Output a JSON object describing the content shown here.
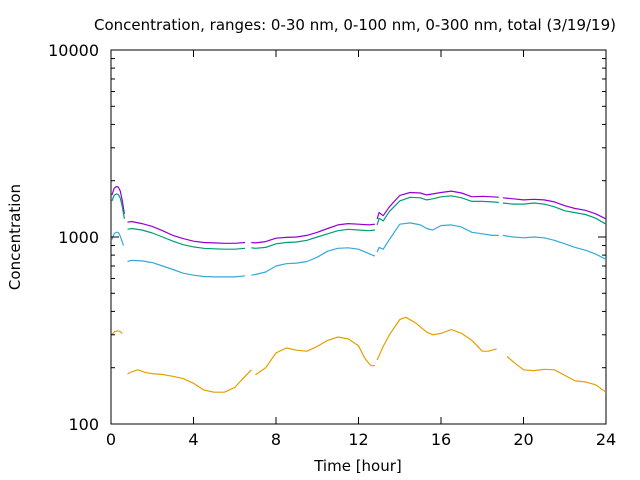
{
  "chart_data": {
    "type": "line",
    "title": "Concentration, ranges: 0-30 nm, 0-100 nm, 0-300 nm, total (3/19/19)",
    "xlabel": "Time [hour]",
    "ylabel": "Concentration",
    "xlim": [
      0,
      24
    ],
    "ylim": [
      100,
      10000
    ],
    "yscale": "log",
    "grid": false,
    "x_ticks": [
      0,
      4,
      8,
      12,
      16,
      20,
      24
    ],
    "x_tick_labels": [
      "0",
      "4",
      "8",
      "12",
      "16",
      "20",
      "24"
    ],
    "y_ticks": [
      100,
      1000,
      10000
    ],
    "y_tick_labels": [
      "100",
      "1000",
      "10000"
    ],
    "y_minor_ticks": [
      200,
      300,
      400,
      500,
      600,
      700,
      800,
      900,
      2000,
      3000,
      4000,
      5000,
      6000,
      7000,
      8000,
      9000
    ],
    "series": [
      {
        "color": "#9400d3",
        "segments": [
          [
            [
              0.05,
              1680
            ],
            [
              0.15,
              1820
            ],
            [
              0.25,
              1860
            ],
            [
              0.35,
              1850
            ],
            [
              0.45,
              1760
            ],
            [
              0.55,
              1560
            ],
            [
              0.65,
              1330
            ]
          ],
          [
            [
              0.8,
              1200
            ],
            [
              1.0,
              1210
            ],
            [
              1.5,
              1180
            ],
            [
              2.0,
              1140
            ],
            [
              2.5,
              1080
            ],
            [
              3.0,
              1020
            ],
            [
              3.5,
              980
            ],
            [
              4.0,
              950
            ],
            [
              4.5,
              935
            ],
            [
              5.0,
              930
            ],
            [
              5.5,
              925
            ],
            [
              6.0,
              925
            ],
            [
              6.5,
              935
            ]
          ],
          [
            [
              6.8,
              935
            ],
            [
              7.0,
              930
            ],
            [
              7.5,
              945
            ],
            [
              8.0,
              985
            ],
            [
              8.5,
              995
            ],
            [
              9.0,
              1000
            ],
            [
              9.5,
              1020
            ],
            [
              10.0,
              1060
            ],
            [
              10.5,
              1110
            ],
            [
              11.0,
              1160
            ],
            [
              11.5,
              1180
            ],
            [
              12.0,
              1170
            ],
            [
              12.5,
              1160
            ],
            [
              12.8,
              1170
            ]
          ],
          [
            [
              12.9,
              1250
            ],
            [
              13.0,
              1350
            ],
            [
              13.2,
              1300
            ],
            [
              13.5,
              1450
            ],
            [
              14.0,
              1670
            ],
            [
              14.5,
              1730
            ],
            [
              15.0,
              1720
            ],
            [
              15.3,
              1680
            ],
            [
              15.6,
              1700
            ],
            [
              16.0,
              1730
            ],
            [
              16.5,
              1760
            ],
            [
              17.0,
              1720
            ],
            [
              17.5,
              1640
            ],
            [
              18.0,
              1650
            ],
            [
              18.5,
              1640
            ],
            [
              18.8,
              1630
            ]
          ],
          [
            [
              19.0,
              1620
            ],
            [
              19.5,
              1600
            ],
            [
              20.0,
              1580
            ],
            [
              20.5,
              1590
            ],
            [
              21.0,
              1580
            ],
            [
              21.5,
              1540
            ],
            [
              22.0,
              1470
            ],
            [
              22.5,
              1420
            ],
            [
              23.0,
              1390
            ],
            [
              23.5,
              1330
            ],
            [
              24.0,
              1250
            ]
          ]
        ]
      },
      {
        "color": "#009e73",
        "segments": [
          [
            [
              0.05,
              1560
            ],
            [
              0.15,
              1670
            ],
            [
              0.25,
              1700
            ],
            [
              0.35,
              1690
            ],
            [
              0.45,
              1610
            ],
            [
              0.55,
              1450
            ],
            [
              0.65,
              1250
            ]
          ],
          [
            [
              0.8,
              1100
            ],
            [
              1.0,
              1110
            ],
            [
              1.5,
              1090
            ],
            [
              2.0,
              1050
            ],
            [
              2.5,
              1000
            ],
            [
              3.0,
              950
            ],
            [
              3.5,
              910
            ],
            [
              4.0,
              885
            ],
            [
              4.5,
              870
            ],
            [
              5.0,
              865
            ],
            [
              5.5,
              860
            ],
            [
              6.0,
              860
            ],
            [
              6.5,
              870
            ]
          ],
          [
            [
              6.8,
              875
            ],
            [
              7.0,
              870
            ],
            [
              7.5,
              880
            ],
            [
              8.0,
              920
            ],
            [
              8.5,
              935
            ],
            [
              9.0,
              940
            ],
            [
              9.5,
              960
            ],
            [
              10.0,
              1000
            ],
            [
              10.5,
              1040
            ],
            [
              11.0,
              1080
            ],
            [
              11.5,
              1100
            ],
            [
              12.0,
              1090
            ],
            [
              12.5,
              1080
            ],
            [
              12.8,
              1090
            ]
          ],
          [
            [
              12.9,
              1160
            ],
            [
              13.0,
              1260
            ],
            [
              13.2,
              1220
            ],
            [
              13.5,
              1370
            ],
            [
              14.0,
              1560
            ],
            [
              14.5,
              1630
            ],
            [
              15.0,
              1620
            ],
            [
              15.3,
              1580
            ],
            [
              15.6,
              1600
            ],
            [
              16.0,
              1640
            ],
            [
              16.5,
              1660
            ],
            [
              17.0,
              1620
            ],
            [
              17.5,
              1550
            ],
            [
              18.0,
              1550
            ],
            [
              18.5,
              1540
            ],
            [
              18.8,
              1530
            ]
          ],
          [
            [
              19.0,
              1520
            ],
            [
              19.5,
              1500
            ],
            [
              20.0,
              1500
            ],
            [
              20.5,
              1520
            ],
            [
              21.0,
              1500
            ],
            [
              21.5,
              1450
            ],
            [
              22.0,
              1380
            ],
            [
              22.5,
              1350
            ],
            [
              23.0,
              1320
            ],
            [
              23.5,
              1260
            ],
            [
              24.0,
              1170
            ]
          ]
        ]
      },
      {
        "color": "#35a9d9",
        "segments": [
          [
            [
              0.05,
              970
            ],
            [
              0.15,
              1040
            ],
            [
              0.25,
              1060
            ],
            [
              0.35,
              1060
            ],
            [
              0.45,
              1010
            ],
            [
              0.55,
              940
            ],
            [
              0.6,
              900
            ]
          ],
          [
            [
              0.8,
              740
            ],
            [
              1.0,
              750
            ],
            [
              1.5,
              745
            ],
            [
              2.0,
              730
            ],
            [
              2.5,
              700
            ],
            [
              3.0,
              670
            ],
            [
              3.5,
              640
            ],
            [
              4.0,
              625
            ],
            [
              4.5,
              615
            ],
            [
              5.0,
              612
            ],
            [
              5.5,
              612
            ],
            [
              6.0,
              612
            ],
            [
              6.5,
              620
            ]
          ],
          [
            [
              6.8,
              625
            ],
            [
              7.0,
              630
            ],
            [
              7.5,
              650
            ],
            [
              8.0,
              700
            ],
            [
              8.5,
              720
            ],
            [
              9.0,
              725
            ],
            [
              9.5,
              740
            ],
            [
              10.0,
              780
            ],
            [
              10.5,
              840
            ],
            [
              11.0,
              870
            ],
            [
              11.5,
              875
            ],
            [
              12.0,
              860
            ],
            [
              12.5,
              815
            ],
            [
              12.8,
              790
            ]
          ],
          [
            [
              12.9,
              830
            ],
            [
              13.0,
              880
            ],
            [
              13.2,
              860
            ],
            [
              13.5,
              970
            ],
            [
              14.0,
              1170
            ],
            [
              14.5,
              1190
            ],
            [
              15.0,
              1160
            ],
            [
              15.3,
              1110
            ],
            [
              15.6,
              1090
            ],
            [
              16.0,
              1150
            ],
            [
              16.5,
              1160
            ],
            [
              17.0,
              1130
            ],
            [
              17.5,
              1060
            ],
            [
              18.0,
              1040
            ],
            [
              18.5,
              1020
            ],
            [
              18.8,
              1020
            ]
          ],
          [
            [
              19.0,
              1020
            ],
            [
              19.5,
              1000
            ],
            [
              20.0,
              990
            ],
            [
              20.5,
              1000
            ],
            [
              21.0,
              990
            ],
            [
              21.5,
              960
            ],
            [
              22.0,
              920
            ],
            [
              22.5,
              880
            ],
            [
              23.0,
              850
            ],
            [
              23.5,
              810
            ],
            [
              24.0,
              760
            ]
          ]
        ]
      },
      {
        "color": "#e69f00",
        "segments": [
          [
            [
              0.05,
              300
            ],
            [
              0.15,
              310
            ],
            [
              0.3,
              315
            ],
            [
              0.45,
              312
            ],
            [
              0.55,
              305
            ]
          ],
          [
            [
              0.8,
              185
            ],
            [
              1.0,
              190
            ],
            [
              1.3,
              195
            ],
            [
              1.7,
              188
            ],
            [
              2.0,
              186
            ],
            [
              2.5,
              184
            ],
            [
              3.0,
              180
            ],
            [
              3.5,
              175
            ],
            [
              4.0,
              165
            ],
            [
              4.5,
              152
            ],
            [
              5.0,
              148
            ],
            [
              5.5,
              148
            ],
            [
              6.0,
              157
            ],
            [
              6.5,
              180
            ],
            [
              6.8,
              195
            ]
          ],
          [
            [
              7.0,
              183
            ],
            [
              7.5,
              200
            ],
            [
              8.0,
              240
            ],
            [
              8.5,
              255
            ],
            [
              9.0,
              248
            ],
            [
              9.5,
              245
            ],
            [
              10.0,
              260
            ],
            [
              10.5,
              280
            ],
            [
              11.0,
              292
            ],
            [
              11.5,
              285
            ],
            [
              12.0,
              262
            ],
            [
              12.3,
              225
            ],
            [
              12.6,
              205
            ],
            [
              12.8,
              205
            ]
          ],
          [
            [
              12.9,
              220
            ],
            [
              13.2,
              260
            ],
            [
              13.5,
              300
            ],
            [
              14.0,
              362
            ],
            [
              14.3,
              372
            ],
            [
              14.8,
              345
            ],
            [
              15.3,
              310
            ],
            [
              15.6,
              300
            ],
            [
              16.0,
              305
            ],
            [
              16.5,
              320
            ],
            [
              17.0,
              305
            ],
            [
              17.5,
              280
            ],
            [
              18.0,
              245
            ],
            [
              18.3,
              245
            ],
            [
              18.7,
              252
            ]
          ],
          [
            [
              19.2,
              230
            ],
            [
              19.5,
              215
            ],
            [
              20.0,
              195
            ],
            [
              20.5,
              193
            ],
            [
              21.0,
              196
            ],
            [
              21.5,
              195
            ],
            [
              22.0,
              182
            ],
            [
              22.5,
              170
            ],
            [
              23.0,
              168
            ],
            [
              23.5,
              162
            ],
            [
              24.0,
              148
            ]
          ]
        ]
      }
    ]
  }
}
